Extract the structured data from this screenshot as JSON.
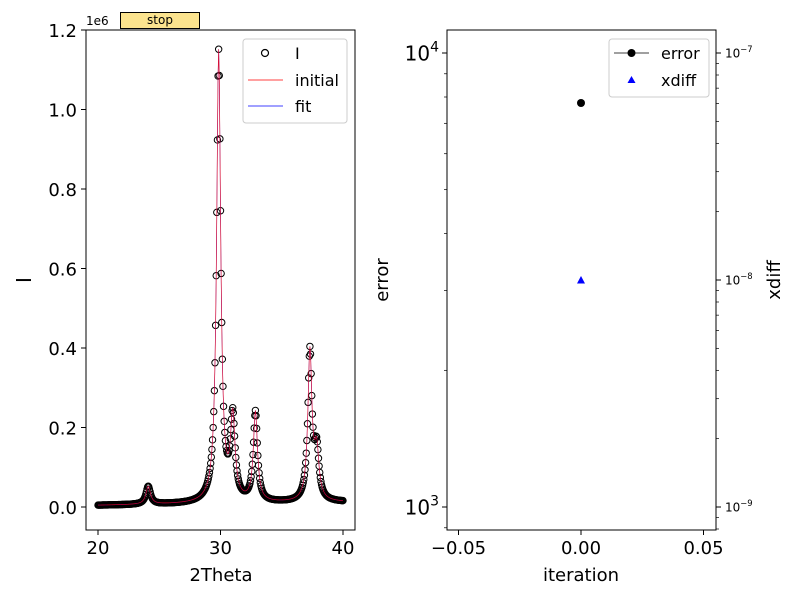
{
  "controls": {
    "stop_label": "stop"
  },
  "chart_data": [
    {
      "type": "scatter",
      "panel": "left",
      "title": "",
      "xlabel": "2Theta",
      "ylabel": "I",
      "offset_label": "1e6",
      "xlim": [
        19.0,
        41.0
      ],
      "ylim": [
        -0.06,
        1.2
      ],
      "y_scale_factor": 1000000,
      "xticks": [
        20,
        30,
        40
      ],
      "xtick_labels": [
        "20",
        "30",
        "40"
      ],
      "yticks": [
        0.0,
        0.2,
        0.4,
        0.6,
        0.8,
        1.0,
        1.2
      ],
      "ytick_labels": [
        "0.0",
        "0.2",
        "0.4",
        "0.6",
        "0.8",
        "1.0",
        "1.2"
      ],
      "grid": false,
      "legend": {
        "placement": "top-right",
        "entries": [
          "I",
          "initial",
          "fit"
        ]
      },
      "x_range_data": [
        20.0,
        40.0
      ],
      "x_step": 0.05,
      "background": {
        "offset": 0.004,
        "slope": 0.0004,
        "ref_x": 20.0
      },
      "peaks": [
        {
          "center": 24.1,
          "height": 0.045,
          "hwhm": 0.22
        },
        {
          "center": 29.85,
          "height": 1.135,
          "hwhm": 0.2
        },
        {
          "center": 31.0,
          "height": 0.205,
          "hwhm": 0.22
        },
        {
          "center": 32.85,
          "height": 0.225,
          "hwhm": 0.2
        },
        {
          "center": 37.3,
          "height": 0.375,
          "hwhm": 0.2
        },
        {
          "center": 37.85,
          "height": 0.12,
          "hwhm": 0.22
        }
      ],
      "series": [
        {
          "name": "I",
          "style": "open-circle",
          "color": "#000000"
        },
        {
          "name": "initial",
          "style": "line",
          "color": "#ff0000"
        },
        {
          "name": "fit",
          "style": "line",
          "color": "#0000ff"
        }
      ]
    },
    {
      "type": "scatter",
      "panel": "right",
      "xlabel": "iteration",
      "ylabel": "error",
      "ylabel_right": "xdiff",
      "xlim": [
        -0.055,
        0.055
      ],
      "xticks": [
        -0.05,
        0.0,
        0.05
      ],
      "xtick_labels": [
        "−0.05",
        "0.00",
        "0.05"
      ],
      "ylim_left_log10": [
        2.95,
        4.05
      ],
      "yticks_left_log10": [
        3,
        4
      ],
      "ytick_labels_left": [
        {
          "base": "10",
          "exp": "3"
        },
        {
          "base": "10",
          "exp": "4"
        }
      ],
      "ylim_right_log10": [
        -9.1,
        -6.9
      ],
      "yticks_right_log10": [
        -9,
        -8,
        -7
      ],
      "ytick_labels_right": [
        {
          "base": "10",
          "exp": "−9"
        },
        {
          "base": "10",
          "exp": "−8"
        },
        {
          "base": "10",
          "exp": "−7"
        }
      ],
      "grid": false,
      "legend": {
        "placement": "top-right",
        "entries": [
          "error",
          "xdiff"
        ]
      },
      "series": [
        {
          "name": "error",
          "axis": "left",
          "marker": "circle",
          "color": "#000000",
          "x": [
            0.0
          ],
          "y": [
            7760
          ]
        },
        {
          "name": "xdiff",
          "axis": "right",
          "marker": "triangle",
          "color": "#0000ff",
          "x": [
            0.0
          ],
          "y": [
            1e-08
          ]
        }
      ]
    }
  ]
}
